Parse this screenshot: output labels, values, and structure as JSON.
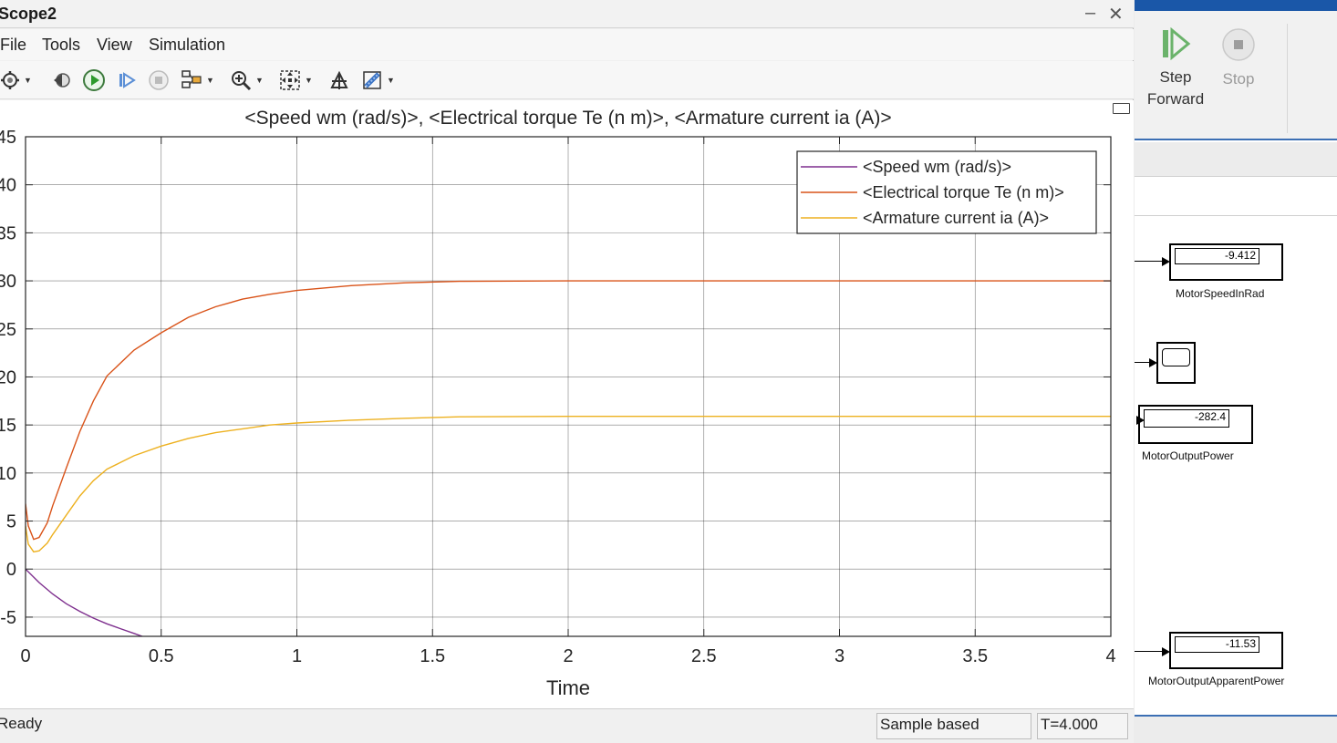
{
  "window": {
    "title": "Scope2",
    "minimize_label": "–",
    "close_label": "✕"
  },
  "menu": [
    "File",
    "Tools",
    "View",
    "Simulation"
  ],
  "toolbar": {
    "icons": [
      "settings-icon",
      "step-back-icon",
      "run-icon",
      "step-forward-icon",
      "stop-icon",
      "trigger-icon",
      "zoom-icon",
      "fit-icon",
      "cursor-icon",
      "measure-icon"
    ]
  },
  "status": {
    "left": "Ready",
    "mode": "Sample based",
    "time": "T=4.000"
  },
  "simulink": {
    "step_forward_label_1": "Step",
    "step_forward_label_2": "Forward",
    "stop_label": "Stop",
    "blocks": [
      {
        "value": "-9.412",
        "label": "MotorSpeedInRad"
      },
      {
        "value": "-282.4",
        "label": "MotorOutputPower"
      },
      {
        "value": "-11.53",
        "label": "MotorOutputApparentPower"
      }
    ]
  },
  "chart_data": {
    "type": "line",
    "title": "<Speed wm (rad/s)>, <Electrical torque Te (n m)>, <Armature current ia (A)>",
    "xlabel": "Time",
    "ylabel": "",
    "xlim": [
      0,
      4
    ],
    "ylim": [
      -7,
      45
    ],
    "xticks": [
      0,
      0.5,
      1,
      1.5,
      2,
      2.5,
      3,
      3.5,
      4
    ],
    "xtick_labels": [
      "0",
      "0.5",
      "1",
      "1.5",
      "2",
      "2.5",
      "3",
      "3.5",
      "4"
    ],
    "yticks": [
      -5,
      0,
      5,
      10,
      15,
      20,
      25,
      30,
      35,
      40,
      45
    ],
    "ytick_labels": [
      "-5",
      "0",
      "5",
      "10",
      "15",
      "20",
      "25",
      "30",
      "35",
      "40",
      "45"
    ],
    "grid": true,
    "legend_position": "top-right",
    "series": [
      {
        "name": "<Speed wm (rad/s)>",
        "color": "#7e2f8e",
        "x": [
          0,
          0.05,
          0.1,
          0.15,
          0.2,
          0.25,
          0.3,
          0.35,
          0.4,
          0.43
        ],
        "y": [
          0,
          -1.4,
          -2.6,
          -3.6,
          -4.4,
          -5.1,
          -5.7,
          -6.2,
          -6.7,
          -7
        ]
      },
      {
        "name": "<Electrical torque Te (n m)>",
        "color": "#d95319",
        "x": [
          0,
          0.01,
          0.03,
          0.05,
          0.08,
          0.1,
          0.15,
          0.2,
          0.25,
          0.3,
          0.4,
          0.5,
          0.6,
          0.7,
          0.8,
          0.9,
          1.0,
          1.2,
          1.4,
          1.6,
          2.0,
          2.5,
          3.0,
          3.5,
          4.0
        ],
        "y": [
          6.8,
          4.5,
          3.1,
          3.3,
          4.8,
          6.6,
          10.5,
          14.3,
          17.5,
          20.1,
          22.8,
          24.6,
          26.2,
          27.3,
          28.1,
          28.6,
          29.0,
          29.5,
          29.8,
          29.95,
          30,
          30,
          30,
          30,
          30
        ]
      },
      {
        "name": "<Armature current ia (A)>",
        "color": "#edb120",
        "x": [
          0,
          0.01,
          0.03,
          0.05,
          0.08,
          0.1,
          0.15,
          0.2,
          0.25,
          0.3,
          0.4,
          0.5,
          0.6,
          0.7,
          0.8,
          0.9,
          1.0,
          1.2,
          1.4,
          1.6,
          2.0,
          2.5,
          3.0,
          3.5,
          4.0
        ],
        "y": [
          4.5,
          2.6,
          1.8,
          1.9,
          2.7,
          3.6,
          5.6,
          7.6,
          9.2,
          10.4,
          11.8,
          12.8,
          13.6,
          14.2,
          14.6,
          15.0,
          15.2,
          15.5,
          15.7,
          15.85,
          15.9,
          15.9,
          15.9,
          15.9,
          15.9
        ]
      }
    ]
  }
}
